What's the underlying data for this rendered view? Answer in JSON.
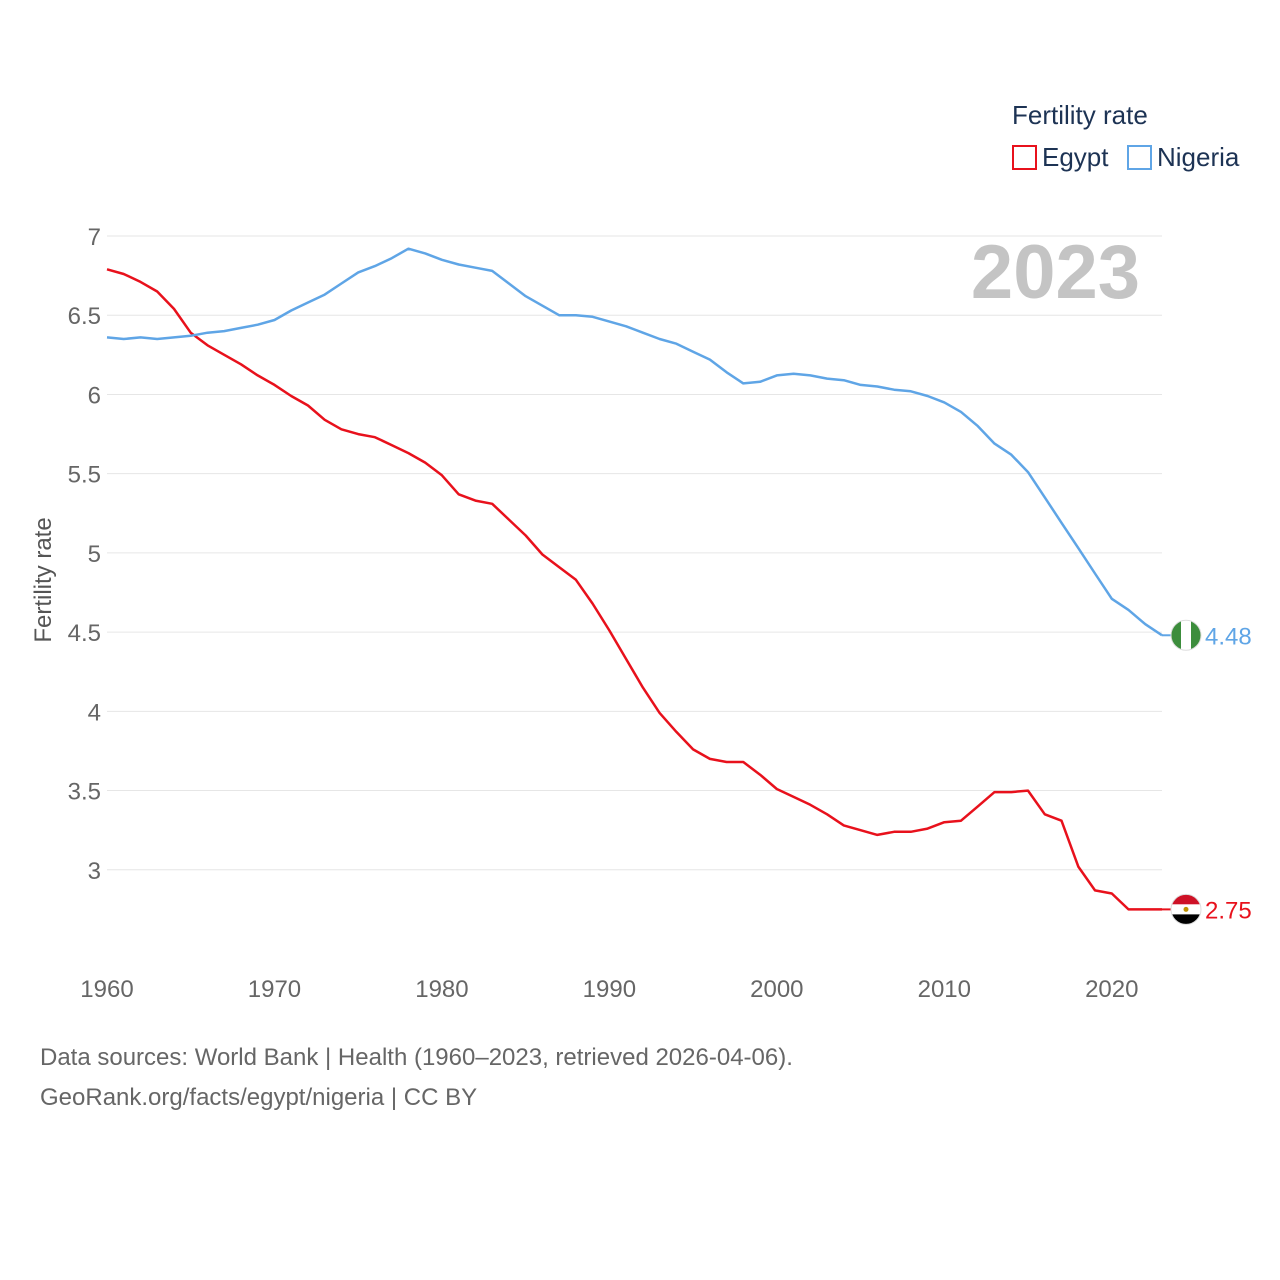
{
  "chart_data": {
    "type": "line",
    "title": "",
    "year_label": "2023",
    "ylabel": "Fertility rate",
    "xlabel": "",
    "ylim": [
      2.5,
      7.0
    ],
    "xlim": [
      1960,
      2023
    ],
    "x_ticks": [
      1960,
      1970,
      1980,
      1990,
      2000,
      2010,
      2020
    ],
    "y_ticks": [
      3,
      3.5,
      4,
      4.5,
      5,
      5.5,
      6,
      6.5,
      7
    ],
    "legend": {
      "title": "Fertility rate",
      "position": "top-right"
    },
    "x": [
      1960,
      1961,
      1962,
      1963,
      1964,
      1965,
      1966,
      1967,
      1968,
      1969,
      1970,
      1971,
      1972,
      1973,
      1974,
      1975,
      1976,
      1977,
      1978,
      1979,
      1980,
      1981,
      1982,
      1983,
      1984,
      1985,
      1986,
      1987,
      1988,
      1989,
      1990,
      1991,
      1992,
      1993,
      1994,
      1995,
      1996,
      1997,
      1998,
      1999,
      2000,
      2001,
      2002,
      2003,
      2004,
      2005,
      2006,
      2007,
      2008,
      2009,
      2010,
      2011,
      2012,
      2013,
      2014,
      2015,
      2016,
      2017,
      2018,
      2019,
      2020,
      2021,
      2022,
      2023
    ],
    "series": [
      {
        "name": "Egypt",
        "color": "#e8111c",
        "end_label": "2.75",
        "flag": "egypt-flag-icon",
        "values": [
          6.79,
          6.76,
          6.71,
          6.65,
          6.54,
          6.39,
          6.31,
          6.25,
          6.19,
          6.12,
          6.06,
          5.99,
          5.93,
          5.84,
          5.78,
          5.75,
          5.73,
          5.68,
          5.63,
          5.57,
          5.49,
          5.37,
          5.33,
          5.31,
          5.21,
          5.11,
          4.99,
          4.91,
          4.83,
          4.68,
          4.51,
          4.33,
          4.15,
          3.99,
          3.87,
          3.76,
          3.7,
          3.68,
          3.68,
          3.6,
          3.51,
          3.46,
          3.41,
          3.35,
          3.28,
          3.25,
          3.22,
          3.24,
          3.24,
          3.26,
          3.3,
          3.31,
          3.4,
          3.49,
          3.49,
          3.5,
          3.35,
          3.31,
          3.02,
          2.87,
          2.85,
          2.75,
          2.75,
          2.75
        ]
      },
      {
        "name": "Nigeria",
        "color": "#5fa5e6",
        "end_label": "4.48",
        "flag": "nigeria-flag-icon",
        "values": [
          6.36,
          6.35,
          6.36,
          6.35,
          6.36,
          6.37,
          6.39,
          6.4,
          6.42,
          6.44,
          6.47,
          6.53,
          6.58,
          6.63,
          6.7,
          6.77,
          6.81,
          6.86,
          6.92,
          6.89,
          6.85,
          6.82,
          6.8,
          6.78,
          6.7,
          6.62,
          6.56,
          6.5,
          6.5,
          6.49,
          6.46,
          6.43,
          6.39,
          6.35,
          6.32,
          6.27,
          6.22,
          6.14,
          6.07,
          6.08,
          6.12,
          6.13,
          6.12,
          6.1,
          6.09,
          6.06,
          6.05,
          6.03,
          6.02,
          5.99,
          5.95,
          5.89,
          5.8,
          5.69,
          5.62,
          5.51,
          5.35,
          5.19,
          5.03,
          4.87,
          4.71,
          4.64,
          4.55,
          4.48
        ]
      }
    ]
  },
  "footer": {
    "line1": "Data sources: World Bank | Health (1960–2023, retrieved 2026-04-06).",
    "line2": "GeoRank.org/facts/egypt/nigeria | CC BY"
  }
}
